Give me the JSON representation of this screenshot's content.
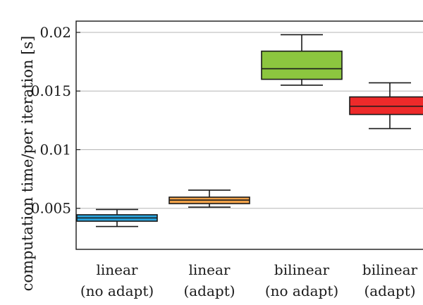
{
  "chart_data": {
    "type": "box",
    "title": "",
    "xlabel": "",
    "ylabel": "computation time/per iteration [s]",
    "ylim": [
      0.0015,
      0.0206
    ],
    "yticks": [
      0.005,
      0.01,
      0.015,
      0.02
    ],
    "ytick_labels": [
      "0.005",
      "0.01",
      "0.015",
      "0.02"
    ],
    "grid": "horizontal",
    "categories": [
      {
        "line1": "linear",
        "line2": "(no adapt)"
      },
      {
        "line1": "linear",
        "line2": "(adapt)"
      },
      {
        "line1": "bilinear",
        "line2": "(no adapt)"
      },
      {
        "line1": "bilinear",
        "line2": "(adapt)"
      }
    ],
    "boxes": [
      {
        "whisker_low": 0.00345,
        "q1": 0.0039,
        "median": 0.00418,
        "q3": 0.00445,
        "whisker_high": 0.0049,
        "color": "#29a3dc"
      },
      {
        "whisker_low": 0.0051,
        "q1": 0.0054,
        "median": 0.0057,
        "q3": 0.00595,
        "whisker_high": 0.00655,
        "color": "#f0a24a"
      },
      {
        "whisker_low": 0.0155,
        "q1": 0.016,
        "median": 0.0169,
        "q3": 0.0184,
        "whisker_high": 0.0198,
        "color": "#8cc63f"
      },
      {
        "whisker_low": 0.0118,
        "q1": 0.013,
        "median": 0.0137,
        "q3": 0.0145,
        "whisker_high": 0.0157,
        "color": "#ee2a2a"
      }
    ]
  }
}
